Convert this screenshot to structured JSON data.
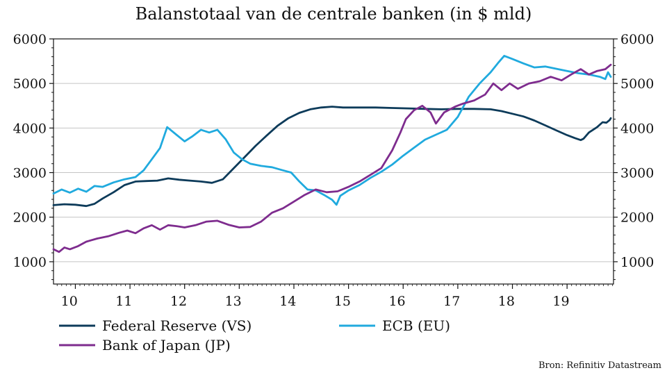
{
  "chart_data": {
    "type": "line",
    "title": "Balanstotaal van de centrale banken (in $ mld)",
    "source": "Bron: Refinitiv Datastream",
    "x_unit": "year",
    "xlim": [
      2009.6,
      2019.85
    ],
    "x_ticks": [
      {
        "label": "10",
        "value": 2010
      },
      {
        "label": "11",
        "value": 2011
      },
      {
        "label": "12",
        "value": 2012
      },
      {
        "label": "13",
        "value": 2013
      },
      {
        "label": "14",
        "value": 2014
      },
      {
        "label": "15",
        "value": 2015
      },
      {
        "label": "16",
        "value": 2016
      },
      {
        "label": "17",
        "value": 2017
      },
      {
        "label": "18",
        "value": 2018
      },
      {
        "label": "19",
        "value": 2019
      }
    ],
    "ylim": [
      500,
      6000
    ],
    "y_ticks": [
      1000,
      2000,
      3000,
      4000,
      5000,
      6000
    ],
    "y_tick_labels": [
      "1000",
      "2000",
      "3000",
      "4000",
      "5000",
      "6000"
    ],
    "secondary_y_axis": true,
    "grid": "horizontal",
    "legend_position": "bottom",
    "series": [
      {
        "name": "Federal Reserve (VS)",
        "color": "#0d3b5a",
        "points": [
          [
            2009.6,
            2270
          ],
          [
            2009.8,
            2290
          ],
          [
            2010.0,
            2280
          ],
          [
            2010.2,
            2250
          ],
          [
            2010.35,
            2300
          ],
          [
            2010.5,
            2420
          ],
          [
            2010.7,
            2560
          ],
          [
            2010.9,
            2720
          ],
          [
            2011.1,
            2800
          ],
          [
            2011.3,
            2810
          ],
          [
            2011.5,
            2820
          ],
          [
            2011.7,
            2870
          ],
          [
            2011.9,
            2840
          ],
          [
            2012.1,
            2820
          ],
          [
            2012.3,
            2800
          ],
          [
            2012.5,
            2770
          ],
          [
            2012.7,
            2850
          ],
          [
            2012.9,
            3100
          ],
          [
            2013.1,
            3350
          ],
          [
            2013.3,
            3600
          ],
          [
            2013.5,
            3830
          ],
          [
            2013.7,
            4050
          ],
          [
            2013.9,
            4220
          ],
          [
            2014.1,
            4340
          ],
          [
            2014.3,
            4420
          ],
          [
            2014.5,
            4460
          ],
          [
            2014.7,
            4480
          ],
          [
            2014.9,
            4460
          ],
          [
            2015.2,
            4460
          ],
          [
            2015.5,
            4460
          ],
          [
            2015.8,
            4450
          ],
          [
            2016.1,
            4440
          ],
          [
            2016.4,
            4430
          ],
          [
            2016.7,
            4420
          ],
          [
            2017.0,
            4430
          ],
          [
            2017.3,
            4430
          ],
          [
            2017.6,
            4420
          ],
          [
            2017.8,
            4380
          ],
          [
            2018.0,
            4320
          ],
          [
            2018.2,
            4260
          ],
          [
            2018.4,
            4170
          ],
          [
            2018.6,
            4060
          ],
          [
            2018.8,
            3950
          ],
          [
            2019.0,
            3840
          ],
          [
            2019.15,
            3770
          ],
          [
            2019.25,
            3730
          ],
          [
            2019.3,
            3760
          ],
          [
            2019.4,
            3900
          ],
          [
            2019.55,
            4020
          ],
          [
            2019.65,
            4130
          ],
          [
            2019.72,
            4120
          ],
          [
            2019.78,
            4180
          ],
          [
            2019.8,
            4220
          ]
        ]
      },
      {
        "name": "ECB (EU)",
        "color": "#20aade",
        "points": [
          [
            2009.6,
            2530
          ],
          [
            2009.75,
            2620
          ],
          [
            2009.9,
            2550
          ],
          [
            2010.05,
            2640
          ],
          [
            2010.2,
            2570
          ],
          [
            2010.35,
            2700
          ],
          [
            2010.5,
            2680
          ],
          [
            2010.7,
            2780
          ],
          [
            2010.9,
            2850
          ],
          [
            2011.1,
            2900
          ],
          [
            2011.25,
            3050
          ],
          [
            2011.4,
            3300
          ],
          [
            2011.55,
            3550
          ],
          [
            2011.68,
            4020
          ],
          [
            2011.85,
            3850
          ],
          [
            2012.0,
            3700
          ],
          [
            2012.15,
            3820
          ],
          [
            2012.3,
            3960
          ],
          [
            2012.45,
            3900
          ],
          [
            2012.6,
            3960
          ],
          [
            2012.75,
            3750
          ],
          [
            2012.9,
            3450
          ],
          [
            2013.05,
            3300
          ],
          [
            2013.2,
            3200
          ],
          [
            2013.4,
            3150
          ],
          [
            2013.6,
            3120
          ],
          [
            2013.8,
            3050
          ],
          [
            2013.95,
            3000
          ],
          [
            2014.1,
            2800
          ],
          [
            2014.25,
            2620
          ],
          [
            2014.4,
            2600
          ],
          [
            2014.55,
            2500
          ],
          [
            2014.7,
            2390
          ],
          [
            2014.78,
            2280
          ],
          [
            2014.85,
            2480
          ],
          [
            2015.0,
            2600
          ],
          [
            2015.2,
            2720
          ],
          [
            2015.4,
            2880
          ],
          [
            2015.6,
            3020
          ],
          [
            2015.8,
            3180
          ],
          [
            2016.0,
            3380
          ],
          [
            2016.2,
            3560
          ],
          [
            2016.4,
            3740
          ],
          [
            2016.6,
            3850
          ],
          [
            2016.8,
            3960
          ],
          [
            2017.0,
            4250
          ],
          [
            2017.2,
            4700
          ],
          [
            2017.4,
            5000
          ],
          [
            2017.6,
            5250
          ],
          [
            2017.75,
            5480
          ],
          [
            2017.85,
            5620
          ],
          [
            2018.0,
            5550
          ],
          [
            2018.2,
            5450
          ],
          [
            2018.4,
            5360
          ],
          [
            2018.6,
            5380
          ],
          [
            2018.8,
            5330
          ],
          [
            2019.0,
            5280
          ],
          [
            2019.2,
            5230
          ],
          [
            2019.4,
            5200
          ],
          [
            2019.6,
            5150
          ],
          [
            2019.7,
            5100
          ],
          [
            2019.75,
            5250
          ],
          [
            2019.8,
            5150
          ]
        ]
      },
      {
        "name": "Bank of Japan (JP)",
        "color": "#7e2c8e",
        "points": [
          [
            2009.6,
            1280
          ],
          [
            2009.7,
            1220
          ],
          [
            2009.8,
            1320
          ],
          [
            2009.9,
            1280
          ],
          [
            2010.05,
            1350
          ],
          [
            2010.2,
            1450
          ],
          [
            2010.4,
            1520
          ],
          [
            2010.6,
            1570
          ],
          [
            2010.8,
            1650
          ],
          [
            2010.95,
            1700
          ],
          [
            2011.1,
            1640
          ],
          [
            2011.25,
            1750
          ],
          [
            2011.4,
            1820
          ],
          [
            2011.55,
            1720
          ],
          [
            2011.7,
            1820
          ],
          [
            2011.85,
            1800
          ],
          [
            2012.0,
            1770
          ],
          [
            2012.2,
            1820
          ],
          [
            2012.4,
            1900
          ],
          [
            2012.6,
            1920
          ],
          [
            2012.8,
            1830
          ],
          [
            2013.0,
            1770
          ],
          [
            2013.2,
            1780
          ],
          [
            2013.4,
            1900
          ],
          [
            2013.6,
            2100
          ],
          [
            2013.8,
            2200
          ],
          [
            2014.0,
            2350
          ],
          [
            2014.2,
            2500
          ],
          [
            2014.4,
            2620
          ],
          [
            2014.6,
            2560
          ],
          [
            2014.8,
            2580
          ],
          [
            2015.0,
            2680
          ],
          [
            2015.2,
            2800
          ],
          [
            2015.4,
            2950
          ],
          [
            2015.6,
            3100
          ],
          [
            2015.8,
            3500
          ],
          [
            2015.95,
            3900
          ],
          [
            2016.05,
            4200
          ],
          [
            2016.2,
            4400
          ],
          [
            2016.35,
            4500
          ],
          [
            2016.5,
            4350
          ],
          [
            2016.6,
            4100
          ],
          [
            2016.75,
            4350
          ],
          [
            2016.95,
            4480
          ],
          [
            2017.1,
            4550
          ],
          [
            2017.3,
            4620
          ],
          [
            2017.5,
            4750
          ],
          [
            2017.65,
            5000
          ],
          [
            2017.8,
            4850
          ],
          [
            2017.95,
            5000
          ],
          [
            2018.1,
            4880
          ],
          [
            2018.3,
            5000
          ],
          [
            2018.5,
            5050
          ],
          [
            2018.7,
            5150
          ],
          [
            2018.9,
            5070
          ],
          [
            2019.1,
            5220
          ],
          [
            2019.25,
            5320
          ],
          [
            2019.4,
            5200
          ],
          [
            2019.55,
            5280
          ],
          [
            2019.7,
            5320
          ],
          [
            2019.8,
            5420
          ]
        ]
      }
    ]
  }
}
